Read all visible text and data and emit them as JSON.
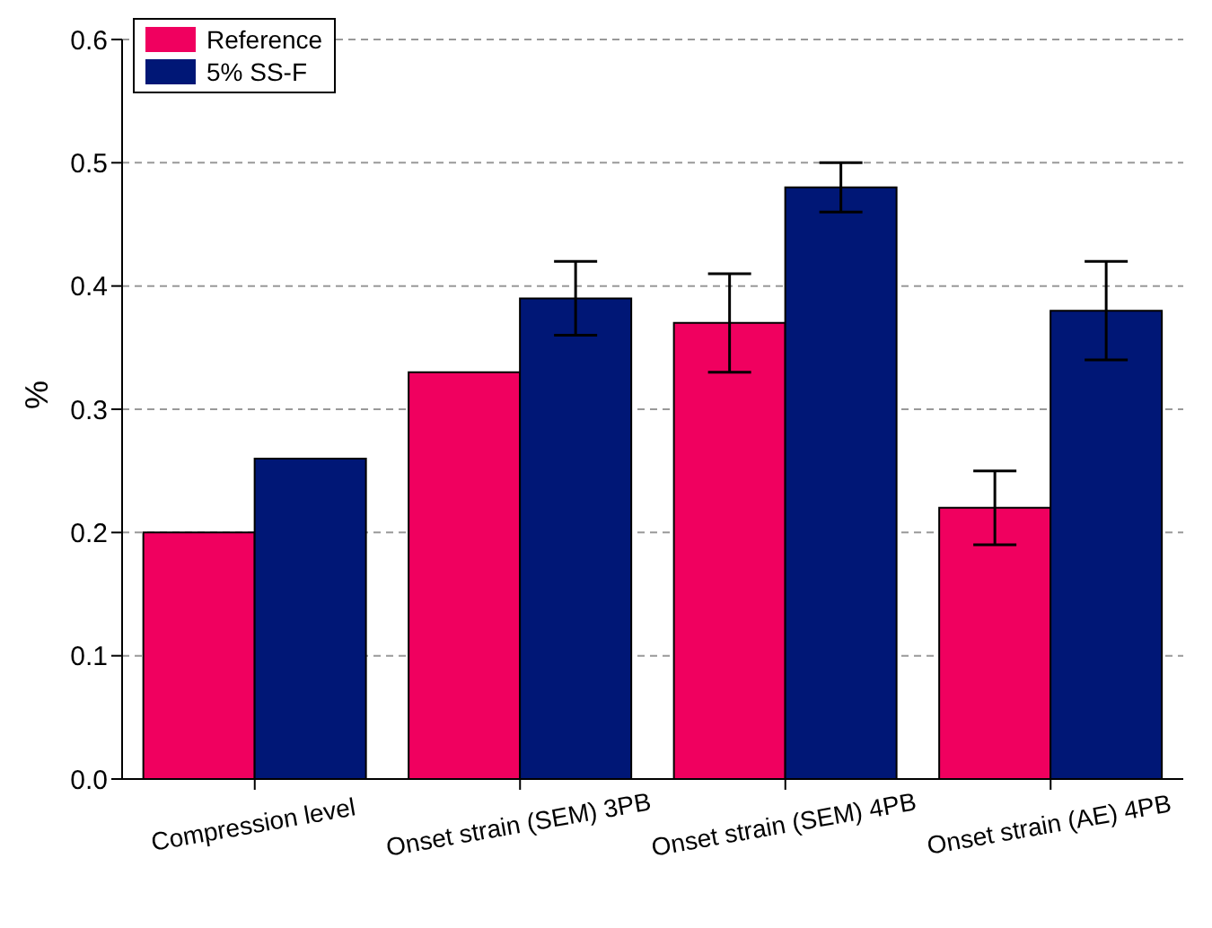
{
  "chart_data": {
    "type": "bar",
    "ylabel": "%",
    "categories": [
      "Compression level",
      "Onset strain (SEM) 3PB",
      "Onset strain (SEM) 4PB",
      "Onset strain (AE) 4PB"
    ],
    "series": [
      {
        "name": "Reference",
        "color": "#f0005f",
        "values": [
          0.2,
          0.33,
          0.37,
          0.22
        ],
        "errors": [
          null,
          null,
          0.04,
          0.03
        ]
      },
      {
        "name": "5% SS-F",
        "color": "#001776",
        "values": [
          0.26,
          0.39,
          0.48,
          0.38
        ],
        "errors": [
          null,
          0.03,
          0.02,
          0.04
        ]
      }
    ],
    "ylim": [
      0,
      0.6
    ],
    "yticks": [
      {
        "value": 0,
        "label": "0.0"
      },
      {
        "value": 0.1,
        "label": "0.1"
      },
      {
        "value": 0.2,
        "label": "0.2"
      },
      {
        "value": 0.3,
        "label": "0.3"
      },
      {
        "value": 0.4,
        "label": "0.4"
      },
      {
        "value": 0.5,
        "label": "0.5"
      },
      {
        "value": 0.6,
        "label": "0.6"
      }
    ],
    "grid": "y",
    "legend": "top left"
  }
}
